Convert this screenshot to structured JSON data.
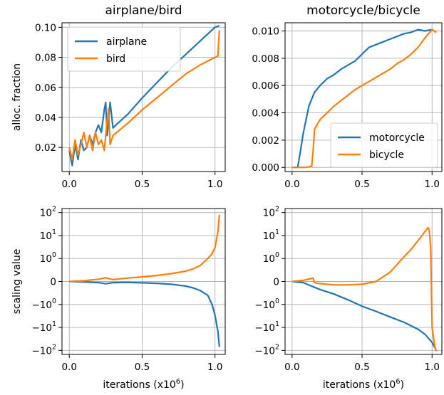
{
  "figure": {
    "colors": {
      "blue": "#1f77b4",
      "orange": "#ff7f0e",
      "grid": "#b0b0b0"
    }
  },
  "chart_data": [
    {
      "type": "line",
      "title": "airplane/bird",
      "xlabel": "",
      "ylabel": "alloc. fraction",
      "xlim": [
        -0.05,
        1.07
      ],
      "ylim": [
        0.004,
        0.103
      ],
      "grid": true,
      "legend_position": "top-left",
      "x_ticks": [
        {
          "value": 0.0,
          "label": "0.0"
        },
        {
          "value": 0.5,
          "label": "0.5"
        },
        {
          "value": 1.0,
          "label": "1.0"
        }
      ],
      "y_ticks": [
        {
          "value": 0.02,
          "label": "0.02"
        },
        {
          "value": 0.04,
          "label": "0.04"
        },
        {
          "value": 0.06,
          "label": "0.06"
        },
        {
          "value": 0.08,
          "label": "0.08"
        },
        {
          "value": 0.1,
          "label": "0.10"
        }
      ],
      "series": [
        {
          "name": "airplane",
          "color": "#1f77b4",
          "x": [
            0.0,
            0.02,
            0.04,
            0.06,
            0.08,
            0.1,
            0.12,
            0.14,
            0.16,
            0.18,
            0.2,
            0.22,
            0.24,
            0.25,
            0.26,
            0.28,
            0.3,
            0.32,
            0.4,
            0.5,
            0.6,
            0.7,
            0.8,
            0.9,
            1.0,
            1.03
          ],
          "y": [
            0.018,
            0.008,
            0.022,
            0.012,
            0.025,
            0.018,
            0.02,
            0.028,
            0.022,
            0.03,
            0.035,
            0.03,
            0.045,
            0.05,
            0.028,
            0.05,
            0.033,
            0.035,
            0.042,
            0.053,
            0.063,
            0.073,
            0.082,
            0.091,
            0.1,
            0.101
          ]
        },
        {
          "name": "bird",
          "color": "#ff7f0e",
          "x": [
            0.0,
            0.02,
            0.04,
            0.06,
            0.08,
            0.1,
            0.12,
            0.14,
            0.16,
            0.18,
            0.2,
            0.22,
            0.24,
            0.26,
            0.27,
            0.28,
            0.3,
            0.4,
            0.5,
            0.6,
            0.7,
            0.8,
            0.9,
            1.0,
            1.02,
            1.025,
            1.03
          ],
          "y": [
            0.02,
            0.012,
            0.025,
            0.015,
            0.022,
            0.03,
            0.02,
            0.028,
            0.018,
            0.03,
            0.022,
            0.025,
            0.018,
            0.038,
            0.046,
            0.022,
            0.028,
            0.036,
            0.045,
            0.053,
            0.061,
            0.069,
            0.075,
            0.08,
            0.081,
            0.09,
            0.098
          ]
        }
      ]
    },
    {
      "type": "line",
      "title": "motorcycle/bicycle",
      "xlabel": "",
      "ylabel": "",
      "xlim": [
        -0.05,
        1.07
      ],
      "ylim": [
        -0.0003,
        0.0106
      ],
      "grid": true,
      "legend_position": "bottom-right",
      "x_ticks": [
        {
          "value": 0.0,
          "label": "0.0"
        },
        {
          "value": 0.5,
          "label": "0.5"
        },
        {
          "value": 1.0,
          "label": "1.0"
        }
      ],
      "y_ticks": [
        {
          "value": 0.0,
          "label": "0.000"
        },
        {
          "value": 0.002,
          "label": "0.002"
        },
        {
          "value": 0.004,
          "label": "0.004"
        },
        {
          "value": 0.006,
          "label": "0.006"
        },
        {
          "value": 0.008,
          "label": "0.008"
        },
        {
          "value": 0.01,
          "label": "0.010"
        }
      ],
      "series": [
        {
          "name": "motorcycle",
          "color": "#1f77b4",
          "x": [
            0.0,
            0.04,
            0.06,
            0.08,
            0.1,
            0.12,
            0.14,
            0.16,
            0.2,
            0.25,
            0.3,
            0.35,
            0.4,
            0.45,
            0.5,
            0.55,
            0.6,
            0.65,
            0.7,
            0.75,
            0.8,
            0.85,
            0.9,
            0.95,
            1.0,
            1.03
          ],
          "y": [
            0.0,
            0.0,
            0.0012,
            0.0025,
            0.0035,
            0.0045,
            0.005,
            0.0055,
            0.006,
            0.0065,
            0.0068,
            0.0072,
            0.0075,
            0.0078,
            0.0083,
            0.0088,
            0.009,
            0.0092,
            0.0094,
            0.0096,
            0.0098,
            0.0099,
            0.0101,
            0.01,
            0.0101,
            0.0099
          ]
        },
        {
          "name": "bicycle",
          "color": "#ff7f0e",
          "x": [
            0.0,
            0.1,
            0.14,
            0.15,
            0.16,
            0.2,
            0.25,
            0.3,
            0.35,
            0.4,
            0.45,
            0.5,
            0.55,
            0.6,
            0.65,
            0.7,
            0.75,
            0.8,
            0.85,
            0.9,
            0.95,
            1.0,
            1.03
          ],
          "y": [
            0.0,
            0.0,
            0.0001,
            0.0012,
            0.0028,
            0.0035,
            0.004,
            0.0045,
            0.0049,
            0.0053,
            0.0057,
            0.006,
            0.0063,
            0.0066,
            0.0069,
            0.0072,
            0.0076,
            0.0079,
            0.0083,
            0.0088,
            0.0095,
            0.0101,
            0.0099
          ]
        }
      ]
    },
    {
      "type": "line",
      "title": "",
      "xlabel": "iterations (x10^6)",
      "ylabel": "scaling value",
      "xlim": [
        -0.05,
        1.07
      ],
      "yscale": "symlog",
      "linthresh": 1,
      "ylim": [
        -150,
        150
      ],
      "grid": true,
      "x_ticks": [
        {
          "value": 0.0,
          "label": "0.0"
        },
        {
          "value": 0.5,
          "label": "0.5"
        },
        {
          "value": 1.0,
          "label": "1.0"
        }
      ],
      "y_ticks": [
        {
          "value": 100,
          "base": "10",
          "exp": "2"
        },
        {
          "value": 10,
          "base": "10",
          "exp": "1"
        },
        {
          "value": 1,
          "base": "10",
          "exp": "0"
        },
        {
          "value": 0,
          "base": "0",
          "exp": ""
        },
        {
          "value": -1,
          "base": "−10",
          "exp": "0"
        },
        {
          "value": -10,
          "base": "−10",
          "exp": "1"
        },
        {
          "value": -100,
          "base": "−10",
          "exp": "2"
        }
      ],
      "series": [
        {
          "name": "",
          "color": "#1f77b4",
          "x": [
            0.0,
            0.1,
            0.2,
            0.25,
            0.3,
            0.4,
            0.5,
            0.6,
            0.7,
            0.8,
            0.85,
            0.9,
            0.95,
            0.98,
            1.0,
            1.02,
            1.03
          ],
          "y": [
            0.0,
            -0.02,
            -0.05,
            -0.1,
            -0.05,
            -0.04,
            -0.06,
            -0.08,
            -0.12,
            -0.2,
            -0.28,
            -0.4,
            -0.6,
            -1.0,
            -3.0,
            -15.0,
            -70.0
          ]
        },
        {
          "name": "",
          "color": "#ff7f0e",
          "x": [
            0.0,
            0.1,
            0.2,
            0.25,
            0.3,
            0.4,
            0.5,
            0.6,
            0.7,
            0.8,
            0.85,
            0.9,
            0.95,
            0.98,
            1.0,
            1.02,
            1.03
          ],
          "y": [
            0.0,
            0.03,
            0.1,
            0.16,
            0.08,
            0.15,
            0.2,
            0.26,
            0.34,
            0.45,
            0.55,
            0.7,
            1.0,
            1.6,
            3.0,
            15.0,
            80.0
          ]
        }
      ]
    },
    {
      "type": "line",
      "title": "",
      "xlabel": "iterations (x10^6)",
      "ylabel": "",
      "xlim": [
        -0.05,
        1.07
      ],
      "yscale": "symlog",
      "linthresh": 1,
      "ylim": [
        -150,
        150
      ],
      "grid": true,
      "x_ticks": [
        {
          "value": 0.0,
          "label": "0.0"
        },
        {
          "value": 0.5,
          "label": "0.5"
        },
        {
          "value": 1.0,
          "label": "1.0"
        }
      ],
      "y_ticks": [
        {
          "value": 100,
          "base": "10",
          "exp": "2"
        },
        {
          "value": 10,
          "base": "10",
          "exp": "1"
        },
        {
          "value": 1,
          "base": "10",
          "exp": "0"
        },
        {
          "value": 0,
          "base": "0",
          "exp": ""
        },
        {
          "value": -1,
          "base": "−10",
          "exp": "0"
        },
        {
          "value": -10,
          "base": "−10",
          "exp": "1"
        },
        {
          "value": -100,
          "base": "−10",
          "exp": "2"
        }
      ],
      "series": [
        {
          "name": "",
          "color": "#1f77b4",
          "x": [
            0.0,
            0.08,
            0.14,
            0.2,
            0.3,
            0.4,
            0.5,
            0.6,
            0.7,
            0.8,
            0.9,
            0.95,
            1.0,
            1.03
          ],
          "y": [
            0.0,
            -0.05,
            -0.2,
            -0.35,
            -0.55,
            -0.8,
            -1.2,
            -2.0,
            -3.5,
            -6.0,
            -12.0,
            -20.0,
            -45.0,
            -100.0
          ]
        },
        {
          "name": "",
          "color": "#ff7f0e",
          "x": [
            0.0,
            0.08,
            0.15,
            0.16,
            0.18,
            0.25,
            0.3,
            0.4,
            0.5,
            0.6,
            0.7,
            0.8,
            0.85,
            0.9,
            0.95,
            0.97,
            0.98,
            0.99,
            1.0,
            1.02,
            1.03
          ],
          "y": [
            0.0,
            0.05,
            0.15,
            -0.05,
            -0.08,
            -0.12,
            -0.15,
            -0.15,
            -0.12,
            0.0,
            0.4,
            1.2,
            2.5,
            6.0,
            15.0,
            22.0,
            18.0,
            3.0,
            -10.0,
            -70.0,
            -110.0
          ]
        }
      ]
    }
  ]
}
